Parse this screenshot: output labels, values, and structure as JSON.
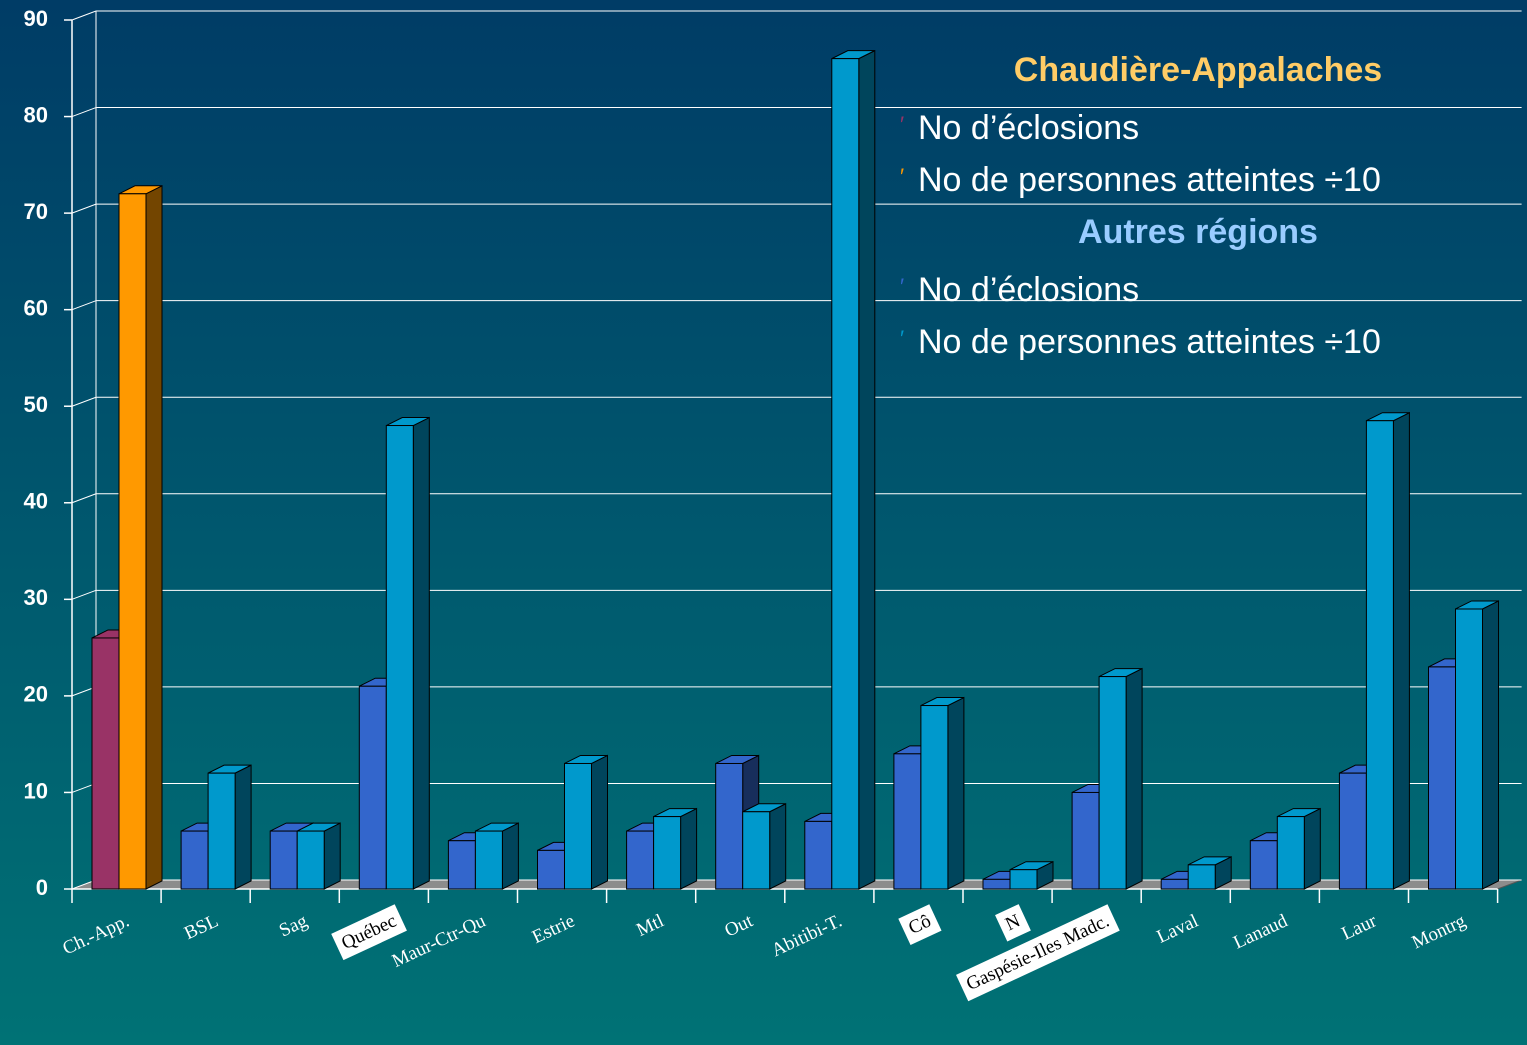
{
  "chart_data": {
    "type": "bar3d",
    "categories": [
      "Ch.-App.",
      "BSL",
      "Sag",
      "Québec",
      "Maur-Ctr-Qu",
      "Estrie",
      "Mtl",
      "Out",
      "Abitibi-T.",
      "Cô",
      "N",
      "Gaspésie-Iles Madc.",
      "Laval",
      "Lanaud",
      "Laur",
      "Montrg"
    ],
    "boxed_categories": [
      "Québec",
      "Cô",
      "N",
      "Gaspésie-Iles Madc."
    ],
    "series": [
      {
        "name": "No d’éclosions",
        "values": [
          26,
          6,
          6,
          21,
          5,
          4,
          6,
          13,
          7,
          14,
          1,
          10,
          1,
          5,
          12,
          23
        ]
      },
      {
        "name": "No de personnes atteintes ÷10",
        "values": [
          72,
          12,
          6,
          48,
          6,
          13,
          7.5,
          8,
          86,
          19,
          2,
          22,
          2.5,
          7.5,
          48.5,
          29
        ]
      }
    ],
    "legend": [
      {
        "title": "Chaudière-Appalaches",
        "title_color": "#ffcc66",
        "categories": [
          "Ch.-App."
        ],
        "entries": [
          {
            "name": "No d’éclosions",
            "color": "#993366"
          },
          {
            "name": "No de personnes atteintes ÷10",
            "color": "#ff9900"
          }
        ]
      },
      {
        "title": "Autres régions",
        "title_color": "#99ccff",
        "entries": [
          {
            "name": "No d’éclosions",
            "color": "#3366cc"
          },
          {
            "name": "No de personnes atteintes ÷10",
            "color": "#0099cc"
          }
        ]
      }
    ],
    "ylim": [
      0,
      90
    ],
    "yticks": [
      0,
      10,
      20,
      30,
      40,
      50,
      60,
      70,
      80,
      90
    ],
    "grid": true
  }
}
